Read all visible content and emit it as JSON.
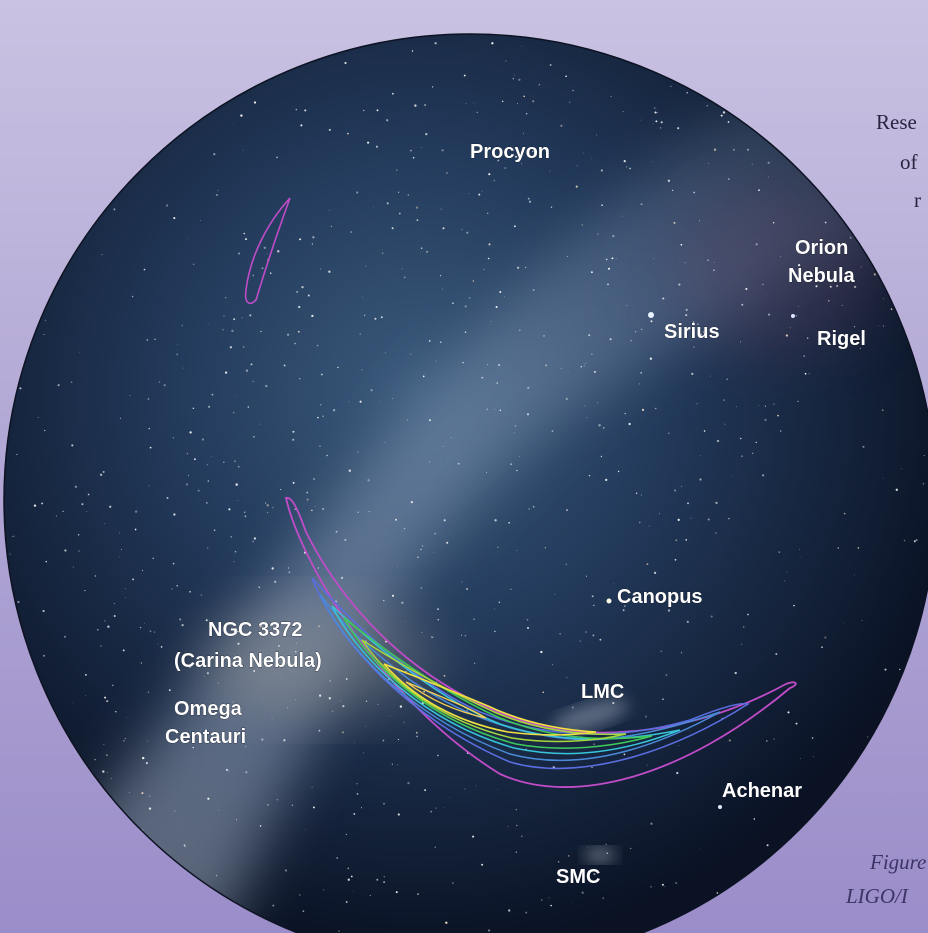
{
  "side_text": {
    "line1": "Rese",
    "line2": "of",
    "line3": "r",
    "caption1": "Figure",
    "caption2": "LIGO/I"
  },
  "labels": {
    "procyon": "Procyon",
    "orion1": "Orion",
    "orion2": "Nebula",
    "sirius": "Sirius",
    "rigel": "Rigel",
    "canopus": "Canopus",
    "ngc1": "NGC 3372",
    "ngc2": "(Carina Nebula)",
    "lmc": "LMC",
    "omega1": "Omega",
    "omega2": "Centauri",
    "achenar": "Achenar",
    "smc": "SMC"
  },
  "colors": {
    "contour_outer": "#c04cc8",
    "contour_blue": "#5a6ee0",
    "contour_cyan": "#38c4d8",
    "contour_green": "#3ec85a",
    "contour_yellow": "#f0e040",
    "sky_center": "#2b4a6b",
    "sky_edge": "#0a1224"
  }
}
